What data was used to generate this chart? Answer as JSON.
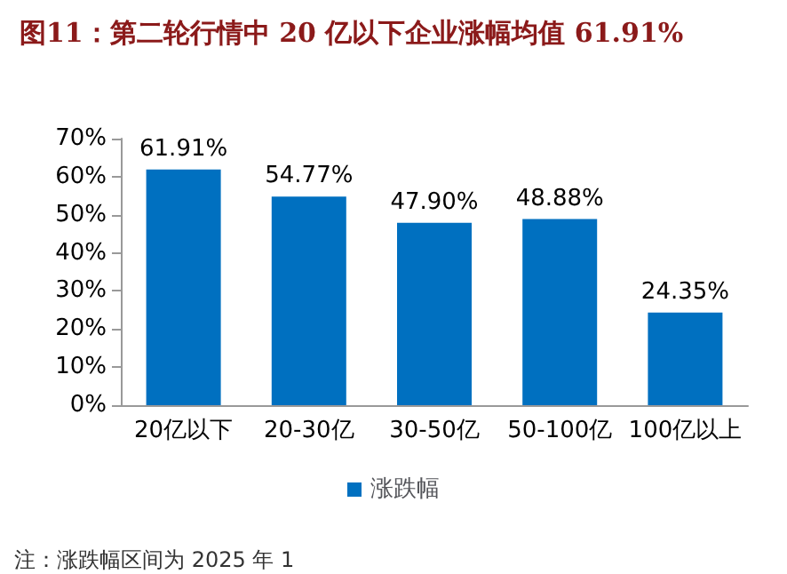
{
  "chart_data": {
    "type": "bar",
    "title": "图11：第二轮行情中 20 亿以下企业涨幅均值 61.91%",
    "categories": [
      "20亿以下",
      "20-30亿",
      "30-50亿",
      "50-100亿",
      "100亿以上"
    ],
    "series": [
      {
        "name": "涨跌幅",
        "color": "#0070c0",
        "values": [
          61.91,
          54.77,
          47.9,
          48.88,
          24.35
        ],
        "value_labels": [
          "61.91%",
          "54.77%",
          "47.90%",
          "48.88%",
          "24.35%"
        ]
      }
    ],
    "ylim": [
      0,
      70
    ],
    "yticks": [
      {
        "value": 0,
        "label": "0%"
      },
      {
        "value": 10,
        "label": "10%"
      },
      {
        "value": 20,
        "label": "20%"
      },
      {
        "value": 30,
        "label": "30%"
      },
      {
        "value": 40,
        "label": "40%"
      },
      {
        "value": 50,
        "label": "50%"
      },
      {
        "value": 60,
        "label": "60%"
      },
      {
        "value": 70,
        "label": "70%"
      }
    ],
    "grid": false,
    "legend": "bottom",
    "annotations": [
      "注：涨跌幅区间为 2025 年 1"
    ]
  }
}
